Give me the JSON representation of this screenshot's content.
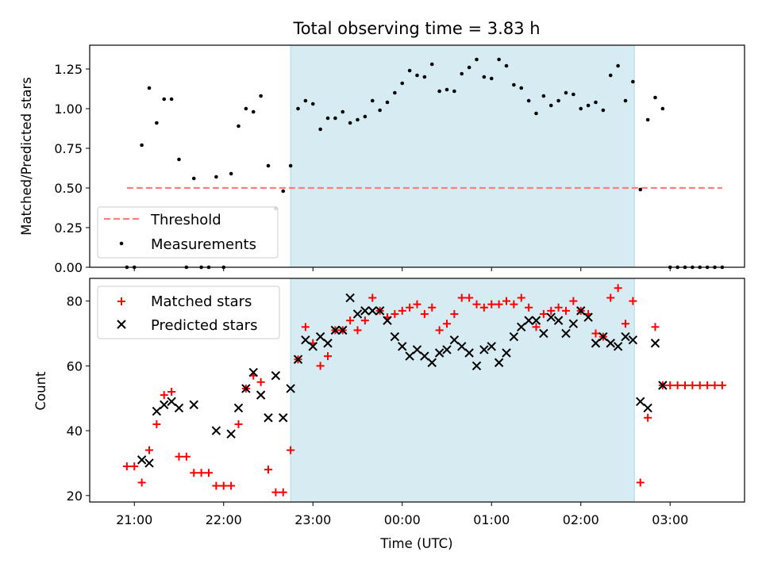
{
  "title": "Total observing time = 3.83 h",
  "colors": {
    "highlight": "#add8e6",
    "threshold": "#ff7f7f",
    "measurements": "#000000",
    "matched": "#ff0000",
    "predicted": "#000000"
  },
  "chart_data": [
    {
      "type": "scatter",
      "ylabel": "Matched/Predicted stars",
      "ylim": [
        0,
        1.4
      ],
      "yticks": [
        0,
        0.25,
        0.5,
        0.75,
        1.0,
        1.25
      ],
      "ytick_labels": [
        "0.00",
        "0.25",
        "0.50",
        "0.75",
        "1.00",
        "1.25"
      ],
      "legend_position": "lower-left",
      "threshold": {
        "name": "Threshold",
        "value": 0.5,
        "x_start": "20:55",
        "x_end": "03:35"
      },
      "series": [
        {
          "name": "Measurements",
          "points": [
            [
              "20:55",
              0.0
            ],
            [
              "21:00",
              0.0
            ],
            [
              "21:05",
              0.77
            ],
            [
              "21:10",
              1.13
            ],
            [
              "21:15",
              0.91
            ],
            [
              "21:20",
              1.06
            ],
            [
              "21:25",
              1.06
            ],
            [
              "21:30",
              0.68
            ],
            [
              "21:35",
              0.0
            ],
            [
              "21:40",
              0.56
            ],
            [
              "21:45",
              0.0
            ],
            [
              "21:50",
              0.0
            ],
            [
              "21:55",
              0.57
            ],
            [
              "22:00",
              0.0
            ],
            [
              "22:05",
              0.59
            ],
            [
              "22:10",
              0.89
            ],
            [
              "22:15",
              1.0
            ],
            [
              "22:20",
              0.98
            ],
            [
              "22:25",
              1.08
            ],
            [
              "22:30",
              0.64
            ],
            [
              "22:35",
              0.37
            ],
            [
              "22:40",
              0.48
            ],
            [
              "22:45",
              0.64
            ],
            [
              "22:50",
              1.0
            ],
            [
              "22:55",
              1.05
            ],
            [
              "23:00",
              1.03
            ],
            [
              "23:05",
              0.87
            ],
            [
              "23:10",
              0.94
            ],
            [
              "23:15",
              0.94
            ],
            [
              "23:20",
              0.98
            ],
            [
              "23:25",
              0.91
            ],
            [
              "23:30",
              0.93
            ],
            [
              "23:35",
              0.95
            ],
            [
              "23:40",
              1.05
            ],
            [
              "23:45",
              0.99
            ],
            [
              "23:50",
              1.04
            ],
            [
              "23:55",
              1.1
            ],
            [
              "00:00",
              1.16
            ],
            [
              "00:05",
              1.24
            ],
            [
              "00:10",
              1.21
            ],
            [
              "00:15",
              1.2
            ],
            [
              "00:20",
              1.28
            ],
            [
              "00:25",
              1.11
            ],
            [
              "00:30",
              1.12
            ],
            [
              "00:35",
              1.11
            ],
            [
              "00:40",
              1.22
            ],
            [
              "00:45",
              1.26
            ],
            [
              "00:50",
              1.31
            ],
            [
              "00:55",
              1.2
            ],
            [
              "01:00",
              1.19
            ],
            [
              "01:05",
              1.31
            ],
            [
              "01:10",
              1.27
            ],
            [
              "01:15",
              1.15
            ],
            [
              "01:20",
              1.13
            ],
            [
              "01:25",
              1.05
            ],
            [
              "01:30",
              0.97
            ],
            [
              "01:35",
              1.08
            ],
            [
              "01:40",
              1.02
            ],
            [
              "01:45",
              1.05
            ],
            [
              "01:50",
              1.1
            ],
            [
              "01:55",
              1.09
            ],
            [
              "02:00",
              1.0
            ],
            [
              "02:05",
              1.02
            ],
            [
              "02:10",
              1.04
            ],
            [
              "02:15",
              0.99
            ],
            [
              "02:20",
              1.21
            ],
            [
              "02:25",
              1.27
            ],
            [
              "02:30",
              1.05
            ],
            [
              "02:35",
              1.17
            ],
            [
              "02:40",
              0.49
            ],
            [
              "02:45",
              0.93
            ],
            [
              "02:50",
              1.07
            ],
            [
              "02:55",
              1.0
            ],
            [
              "03:00",
              0.0
            ],
            [
              "03:05",
              0.0
            ],
            [
              "03:10",
              0.0
            ],
            [
              "03:15",
              0.0
            ],
            [
              "03:20",
              0.0
            ],
            [
              "03:25",
              0.0
            ],
            [
              "03:30",
              0.0
            ],
            [
              "03:35",
              0.0
            ]
          ]
        }
      ]
    },
    {
      "type": "scatter",
      "xlabel": "Time (UTC)",
      "ylabel": "Count",
      "ylim": [
        18,
        87
      ],
      "yticks": [
        20,
        40,
        60,
        80
      ],
      "ytick_labels": [
        "20",
        "40",
        "60",
        "80"
      ],
      "legend_position": "upper-left",
      "series": [
        {
          "name": "Matched stars",
          "marker": "plus",
          "points": [
            [
              "20:55",
              29
            ],
            [
              "21:00",
              29
            ],
            [
              "21:05",
              24
            ],
            [
              "21:10",
              34
            ],
            [
              "21:15",
              42
            ],
            [
              "21:20",
              51
            ],
            [
              "21:25",
              52
            ],
            [
              "21:30",
              32
            ],
            [
              "21:35",
              32
            ],
            [
              "21:40",
              27
            ],
            [
              "21:45",
              27
            ],
            [
              "21:50",
              27
            ],
            [
              "21:55",
              23
            ],
            [
              "22:00",
              23
            ],
            [
              "22:05",
              23
            ],
            [
              "22:10",
              42
            ],
            [
              "22:15",
              53
            ],
            [
              "22:20",
              57
            ],
            [
              "22:25",
              55
            ],
            [
              "22:30",
              28
            ],
            [
              "22:35",
              21
            ],
            [
              "22:40",
              21
            ],
            [
              "22:45",
              34
            ],
            [
              "22:50",
              62
            ],
            [
              "22:55",
              72
            ],
            [
              "23:00",
              67
            ],
            [
              "23:05",
              60
            ],
            [
              "23:10",
              63
            ],
            [
              "23:15",
              71
            ],
            [
              "23:20",
              71
            ],
            [
              "23:25",
              74
            ],
            [
              "23:30",
              71
            ],
            [
              "23:35",
              74
            ],
            [
              "23:40",
              81
            ],
            [
              "23:45",
              77
            ],
            [
              "23:50",
              75
            ],
            [
              "23:55",
              76
            ],
            [
              "00:00",
              77
            ],
            [
              "00:05",
              78
            ],
            [
              "00:10",
              79
            ],
            [
              "00:15",
              76
            ],
            [
              "00:20",
              78
            ],
            [
              "00:25",
              71
            ],
            [
              "00:30",
              73
            ],
            [
              "00:35",
              76
            ],
            [
              "00:40",
              81
            ],
            [
              "00:45",
              81
            ],
            [
              "00:50",
              79
            ],
            [
              "00:55",
              78
            ],
            [
              "01:00",
              79
            ],
            [
              "01:05",
              79
            ],
            [
              "01:10",
              80
            ],
            [
              "01:15",
              79
            ],
            [
              "01:20",
              81
            ],
            [
              "01:25",
              78
            ],
            [
              "01:30",
              72
            ],
            [
              "01:35",
              76
            ],
            [
              "01:40",
              77
            ],
            [
              "01:45",
              78
            ],
            [
              "01:50",
              77
            ],
            [
              "01:55",
              80
            ],
            [
              "02:00",
              77
            ],
            [
              "02:05",
              76
            ],
            [
              "02:10",
              70
            ],
            [
              "02:15",
              69
            ],
            [
              "02:20",
              81
            ],
            [
              "02:25",
              84
            ],
            [
              "02:30",
              73
            ],
            [
              "02:35",
              80
            ],
            [
              "02:40",
              24
            ],
            [
              "02:45",
              44
            ],
            [
              "02:50",
              72
            ],
            [
              "02:55",
              54
            ],
            [
              "03:00",
              54
            ],
            [
              "03:05",
              54
            ],
            [
              "03:10",
              54
            ],
            [
              "03:15",
              54
            ],
            [
              "03:20",
              54
            ],
            [
              "03:25",
              54
            ],
            [
              "03:30",
              54
            ],
            [
              "03:35",
              54
            ]
          ]
        },
        {
          "name": "Predicted stars",
          "marker": "x",
          "points": [
            [
              "21:05",
              31
            ],
            [
              "21:10",
              30
            ],
            [
              "21:15",
              46
            ],
            [
              "21:20",
              48
            ],
            [
              "21:25",
              49
            ],
            [
              "21:30",
              47
            ],
            [
              "21:40",
              48
            ],
            [
              "21:55",
              40
            ],
            [
              "22:05",
              39
            ],
            [
              "22:10",
              47
            ],
            [
              "22:15",
              53
            ],
            [
              "22:20",
              58
            ],
            [
              "22:25",
              51
            ],
            [
              "22:30",
              44
            ],
            [
              "22:35",
              57
            ],
            [
              "22:40",
              44
            ],
            [
              "22:45",
              53
            ],
            [
              "22:50",
              62
            ],
            [
              "22:55",
              68
            ],
            [
              "23:00",
              66
            ],
            [
              "23:05",
              69
            ],
            [
              "23:10",
              67
            ],
            [
              "23:15",
              71
            ],
            [
              "23:20",
              71
            ],
            [
              "23:25",
              81
            ],
            [
              "23:30",
              76
            ],
            [
              "23:35",
              77
            ],
            [
              "23:40",
              77
            ],
            [
              "23:45",
              77
            ],
            [
              "23:50",
              74
            ],
            [
              "23:55",
              69
            ],
            [
              "00:00",
              66
            ],
            [
              "00:05",
              63
            ],
            [
              "00:10",
              65
            ],
            [
              "00:15",
              63
            ],
            [
              "00:20",
              61
            ],
            [
              "00:25",
              64
            ],
            [
              "00:30",
              65
            ],
            [
              "00:35",
              68
            ],
            [
              "00:40",
              66
            ],
            [
              "00:45",
              64
            ],
            [
              "00:50",
              60
            ],
            [
              "00:55",
              65
            ],
            [
              "01:00",
              66
            ],
            [
              "01:05",
              61
            ],
            [
              "01:10",
              64
            ],
            [
              "01:15",
              69
            ],
            [
              "01:20",
              72
            ],
            [
              "01:25",
              74
            ],
            [
              "01:30",
              74
            ],
            [
              "01:35",
              70
            ],
            [
              "01:40",
              75
            ],
            [
              "01:45",
              74
            ],
            [
              "01:50",
              70
            ],
            [
              "01:55",
              73
            ],
            [
              "02:00",
              77
            ],
            [
              "02:05",
              75
            ],
            [
              "02:10",
              67
            ],
            [
              "02:15",
              69
            ],
            [
              "02:20",
              67
            ],
            [
              "02:25",
              66
            ],
            [
              "02:30",
              69
            ],
            [
              "02:35",
              68
            ],
            [
              "02:40",
              49
            ],
            [
              "02:45",
              47
            ],
            [
              "02:50",
              67
            ],
            [
              "02:55",
              54
            ]
          ]
        }
      ]
    }
  ],
  "shared_x": {
    "label": "Time (UTC)",
    "range": [
      "20:30",
      "03:50"
    ],
    "tick_labels": [
      "21:00",
      "22:00",
      "23:00",
      "00:00",
      "01:00",
      "02:00",
      "03:00"
    ],
    "highlight_span": [
      "22:45",
      "02:36"
    ]
  }
}
